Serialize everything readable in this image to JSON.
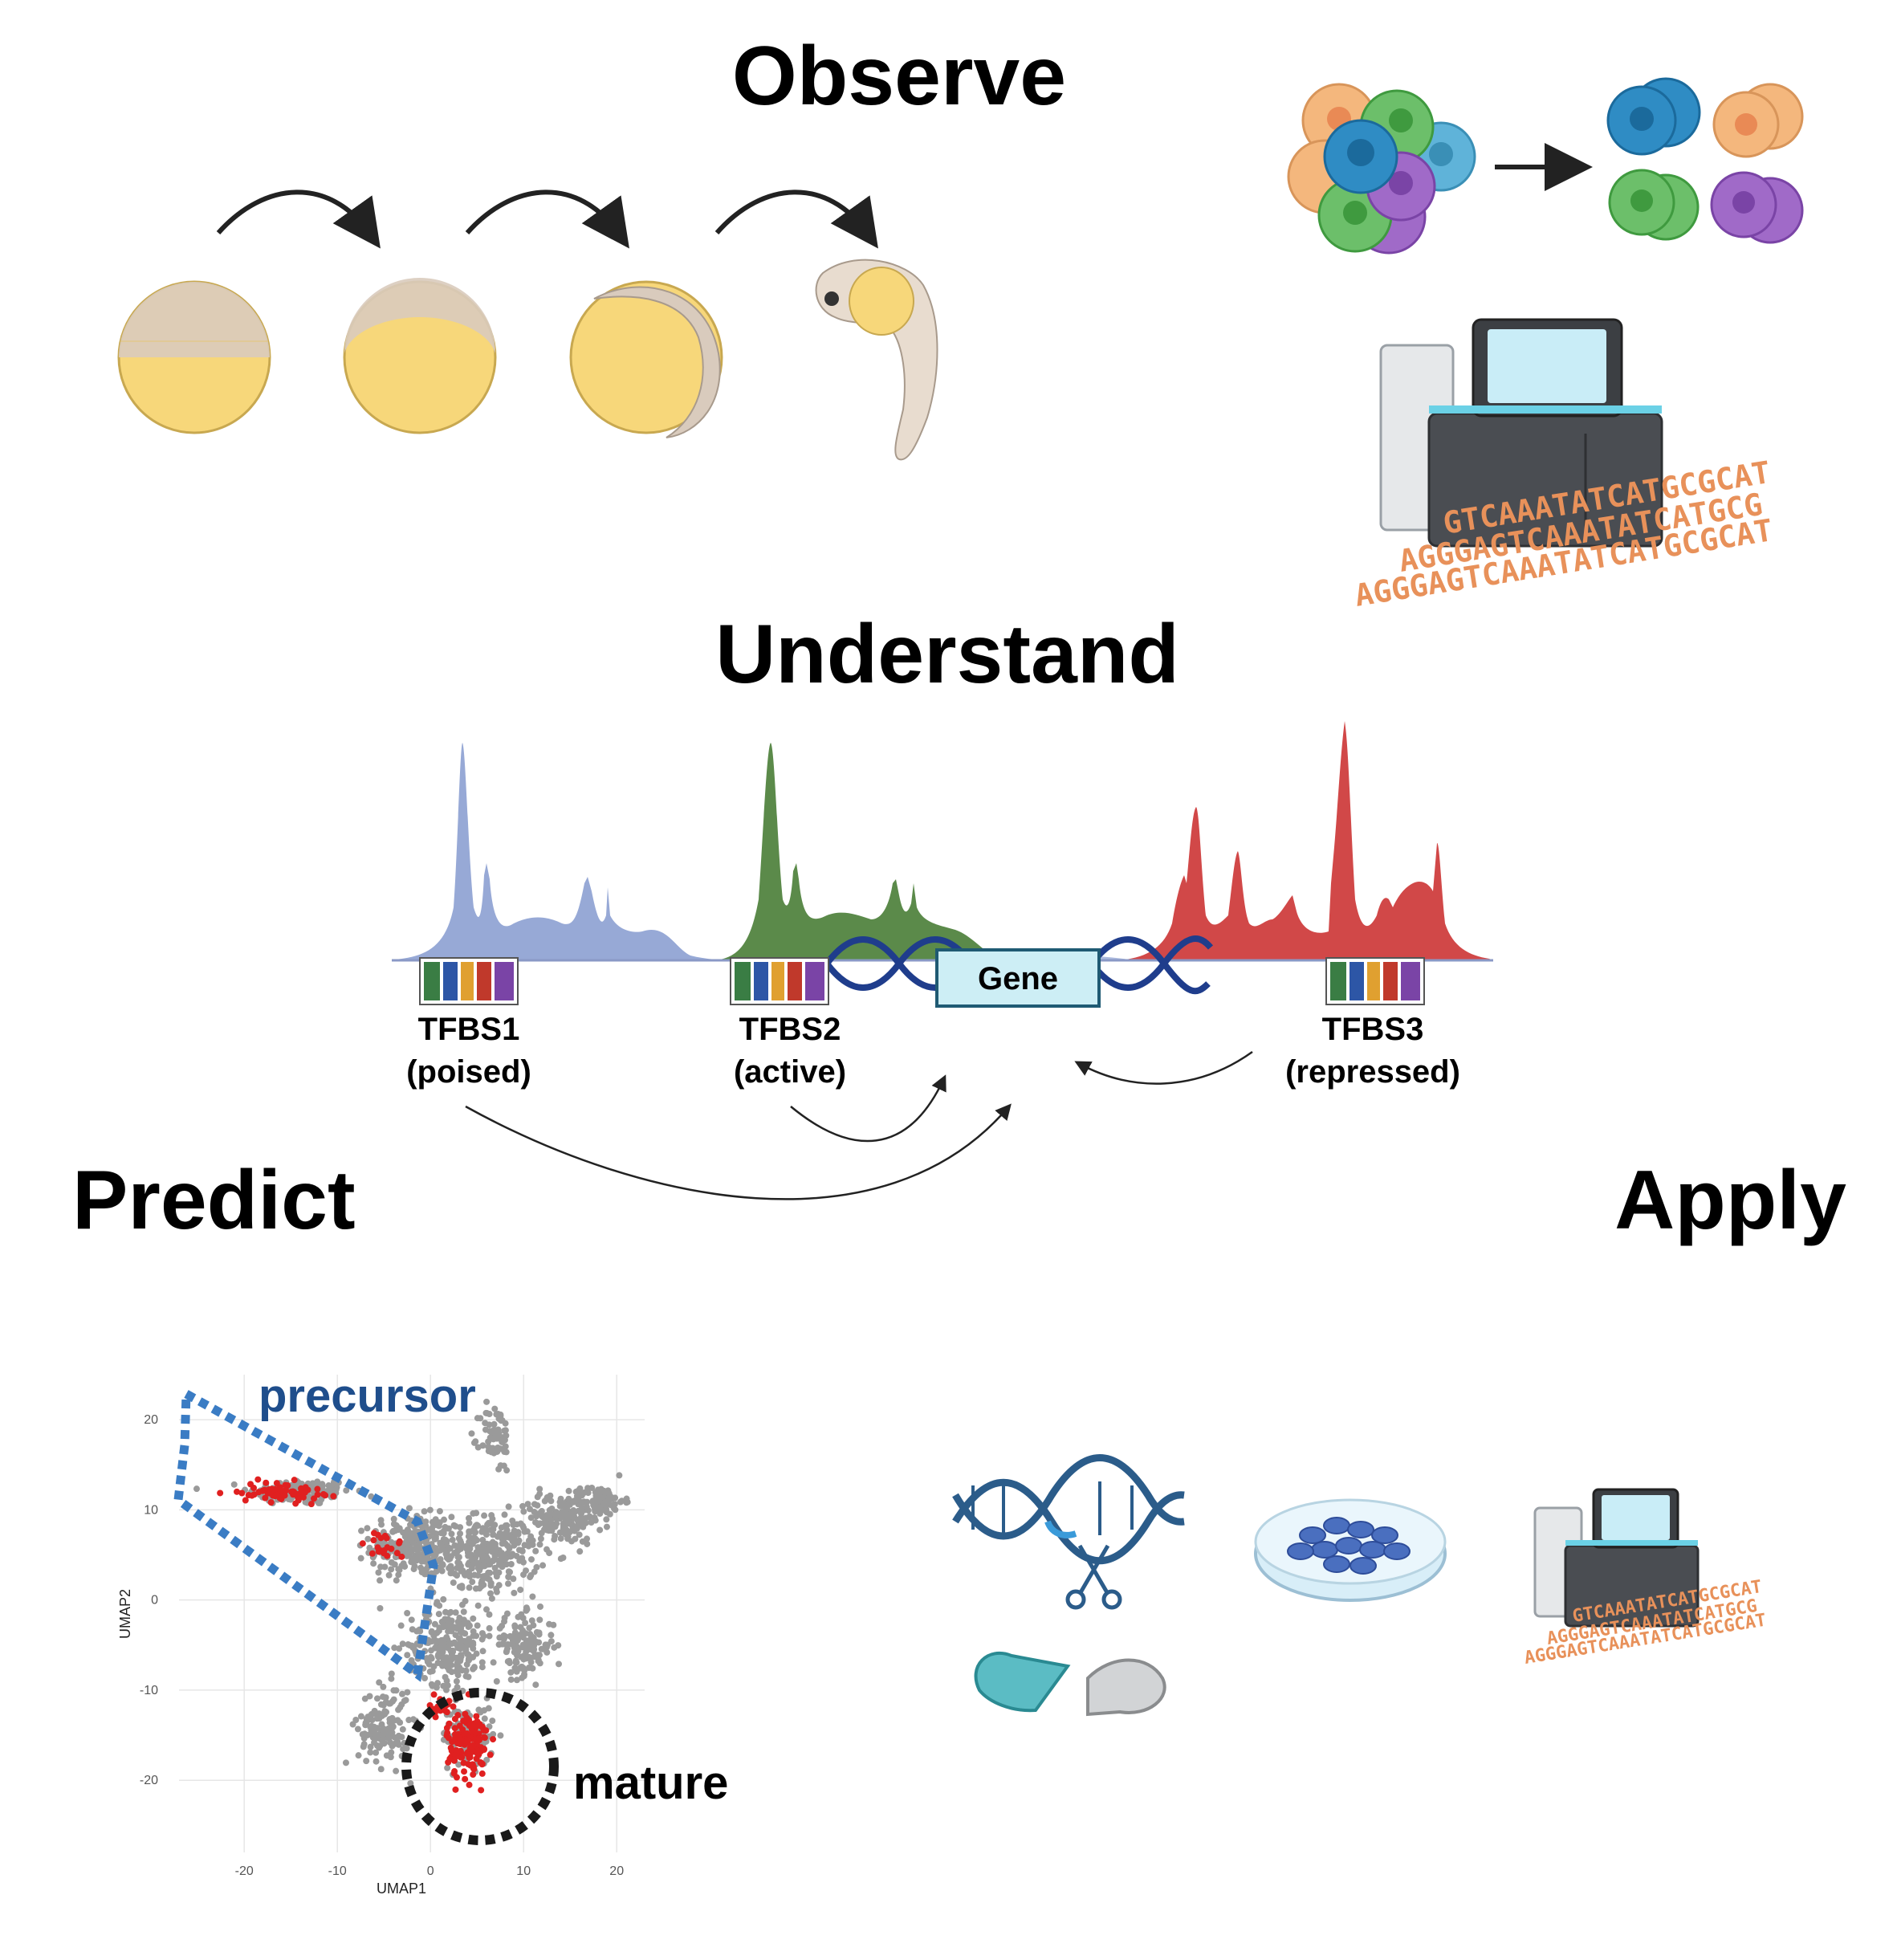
{
  "titles": {
    "observe": "Observe",
    "understand": "Understand",
    "predict": "Predict",
    "apply": "Apply"
  },
  "tfbs": [
    {
      "name": "TFBS1",
      "state": "(poised)"
    },
    {
      "name": "TFBS2",
      "state": "(active)"
    },
    {
      "name": "TFBS3",
      "state": "(repressed)"
    }
  ],
  "gene_label": "Gene",
  "sequence_lines": [
    "GTCAAATATCATGCGCAT",
    "AGGGAGTCAAATATCATGCG",
    "AGGGAGTCAAATATCATGCGCAT"
  ],
  "colors": {
    "yolk": "#f7d77a",
    "blastoderm": "#d9cbbd",
    "track_poised": "#97a9d6",
    "track_active": "#5b8a4a",
    "track_repressed": "#d14848",
    "dna": "#1f3d8c",
    "gene_box": "#cdeef5",
    "precursor": "#1f4e8c",
    "scatter_gray": "#9a9a9a",
    "scatter_red": "#e02020",
    "sequence": "#e8915a"
  },
  "icons": [
    "zebrafish-embryo-icon",
    "cell-cluster-icon",
    "sequencer-icon",
    "dna-scissors-icon",
    "capsule-icon",
    "petri-dish-icon"
  ],
  "chart_data": {
    "type": "scatter",
    "xlabel": "UMAP1",
    "ylabel": "UMAP2",
    "xlim": [
      -27,
      23
    ],
    "ylim": [
      -28,
      25
    ],
    "xticks": [
      -20,
      -10,
      0,
      10,
      20
    ],
    "yticks": [
      -20,
      -10,
      0,
      10,
      20
    ],
    "grid": true,
    "annotations": {
      "precursor": "precursor",
      "mature": "mature"
    },
    "series": [
      {
        "values": "gray background points (clusters)",
        "clusters": [
          {
            "cx": -14,
            "cy": 12,
            "sx": 5,
            "sy": 1.3,
            "n": 160
          },
          {
            "cx": -2,
            "cy": 6,
            "sx": 4,
            "sy": 3,
            "n": 260
          },
          {
            "cx": 6,
            "cy": 5,
            "sx": 5,
            "sy": 4,
            "n": 300
          },
          {
            "cx": 14,
            "cy": 9,
            "sx": 4,
            "sy": 2.5,
            "n": 160
          },
          {
            "cx": 18,
            "cy": 11,
            "sx": 2.5,
            "sy": 1.5,
            "n": 90
          },
          {
            "cx": 7,
            "cy": 18,
            "sx": 1.5,
            "sy": 3.5,
            "n": 70
          },
          {
            "cx": 2,
            "cy": -5,
            "sx": 4,
            "sy": 4,
            "n": 240
          },
          {
            "cx": 10,
            "cy": -5,
            "sx": 3,
            "sy": 3,
            "n": 140
          },
          {
            "cx": -5,
            "cy": -14,
            "sx": 2.5,
            "sy": 4,
            "n": 140
          },
          {
            "cx": 4,
            "cy": -15,
            "sx": 2.5,
            "sy": 3,
            "n": 120
          }
        ]
      },
      {
        "values": "red highlighted points",
        "clusters": [
          {
            "cx": -16,
            "cy": 12,
            "sx": 4,
            "sy": 1,
            "n": 70
          },
          {
            "cx": -5,
            "cy": 6,
            "sx": 2,
            "sy": 1.5,
            "n": 20
          },
          {
            "cx": 4,
            "cy": -16,
            "sx": 2,
            "sy": 3.5,
            "n": 140
          },
          {
            "cx": 1,
            "cy": -12,
            "sx": 1,
            "sy": 1,
            "n": 20
          }
        ]
      }
    ]
  }
}
